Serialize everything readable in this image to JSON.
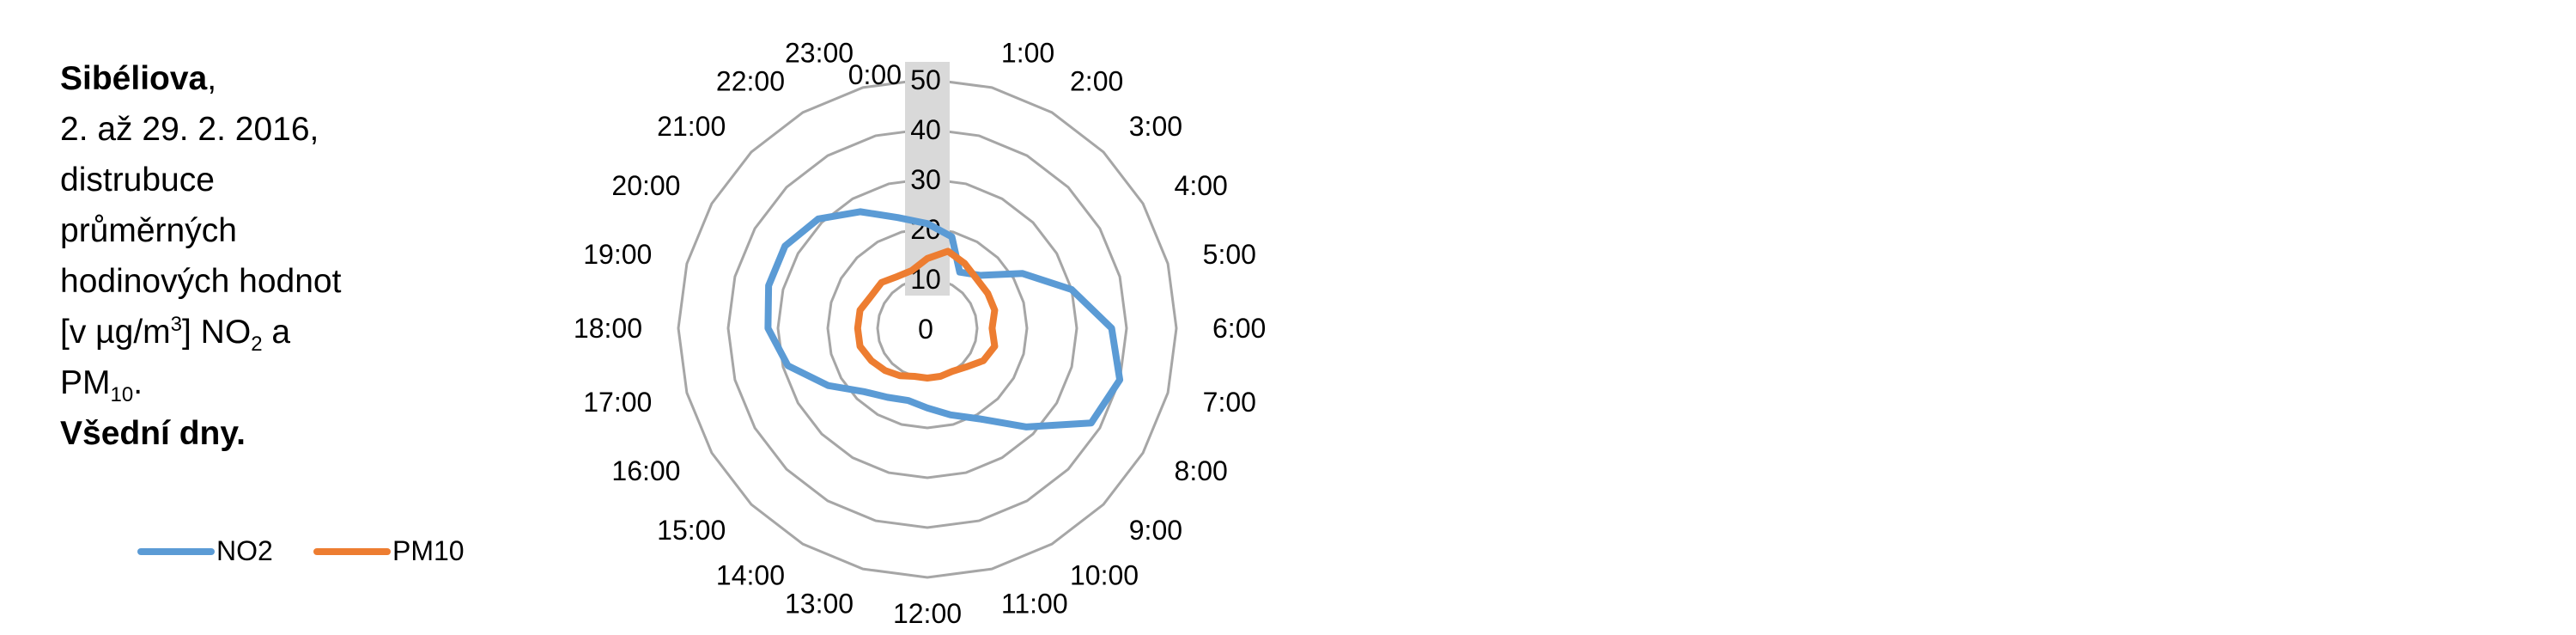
{
  "caption": {
    "station": "Sibéliova",
    "station_suffix": ",",
    "period": "2. až 29. 2. 2016,",
    "line3": "distrubuce",
    "line4": "průměrných",
    "line5": "hodinových hodnot",
    "line6_part1": "[v µg/m",
    "line6_sup": "3",
    "line6_part2": "] NO",
    "line6_sub": "2",
    "line6_part3": " a",
    "line7_part1": "PM",
    "line7_sub": "10",
    "line7_part2": ".",
    "day_type": "Všední dny."
  },
  "legend": {
    "items": [
      {
        "label": "NO2",
        "color": "#5B9BD5"
      },
      {
        "label": "PM10",
        "color": "#ED7D31"
      }
    ]
  },
  "chart_data": {
    "type": "radar",
    "title": "",
    "categories": [
      "0:00",
      "1:00",
      "2:00",
      "3:00",
      "4:00",
      "5:00",
      "6:00",
      "7:00",
      "8:00",
      "9:00",
      "10:00",
      "11:00",
      "12:00",
      "13:00",
      "14:00",
      "15:00",
      "16:00",
      "17:00",
      "18:00",
      "19:00",
      "20:00",
      "21:00",
      "22:00",
      "23:00"
    ],
    "radial_axis": {
      "min": 0,
      "max": 50,
      "ticks": [
        0,
        10,
        20,
        30,
        40,
        50
      ]
    },
    "grid": true,
    "legend_position": "bottom-left",
    "series": [
      {
        "name": "NO2",
        "color": "#5B9BD5",
        "values": [
          21,
          19,
          13,
          15,
          22,
          30,
          37,
          40,
          38,
          28,
          21,
          18,
          16,
          15,
          16,
          18,
          23,
          29,
          32,
          33,
          33,
          31,
          27,
          23
        ]
      },
      {
        "name": "PM10",
        "color": "#ED7D31",
        "values": [
          14,
          16,
          15,
          14,
          14,
          14,
          13,
          14,
          13,
          11,
          10,
          10,
          10,
          10,
          11,
          12,
          13,
          14,
          14,
          14,
          13,
          13,
          12,
          12
        ]
      }
    ]
  }
}
